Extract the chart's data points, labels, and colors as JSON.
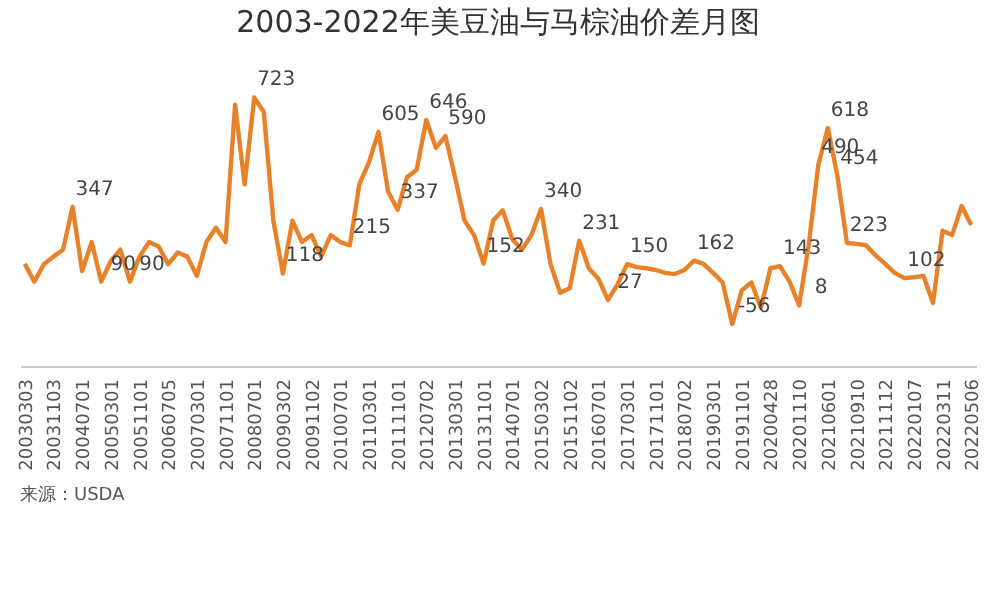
{
  "chart_data": {
    "type": "line",
    "title": "2003-2022年美豆油与马棕油价差月图",
    "annotations": [
      "来源：USDA"
    ],
    "categories": [
      "20030303",
      null,
      null,
      "20031103",
      null,
      null,
      "20040701",
      null,
      null,
      "20050301",
      null,
      null,
      "20051101",
      null,
      null,
      "20060705",
      null,
      null,
      "20070301",
      null,
      null,
      "20071101",
      null,
      null,
      "20080701",
      null,
      null,
      "20090302",
      null,
      null,
      "20091102",
      null,
      null,
      "20100701",
      null,
      null,
      "20110301",
      null,
      null,
      "20111101",
      null,
      null,
      "20120702",
      null,
      null,
      "20130301",
      null,
      null,
      "20131101",
      null,
      null,
      "20140701",
      null,
      null,
      "20150302",
      null,
      null,
      "20151102",
      null,
      null,
      "20160701",
      null,
      null,
      "20170301",
      null,
      null,
      "20171101",
      null,
      null,
      "20180702",
      null,
      null,
      "20190301",
      null,
      null,
      "20191101",
      null,
      null,
      "20200428",
      null,
      null,
      "20201110",
      null,
      null,
      "20210601",
      null,
      null,
      "20210910",
      null,
      null,
      "20211112",
      null,
      null,
      "20220107",
      null,
      null,
      "20220311",
      null,
      null,
      "20220506"
    ],
    "series": [
      {
        "color": "#e8822a",
        "values": [
          151,
          90,
          150,
          176,
          200,
          347,
          126,
          226,
          90,
          161,
          200,
          90,
          176,
          226,
          211,
          150,
          190,
          176,
          110,
          226,
          275,
          226,
          698,
          425,
          723,
          673,
          300,
          118,
          300,
          226,
          250,
          176,
          250,
          226,
          215,
          425,
          500,
          605,
          400,
          337,
          450,
          475,
          646,
          550,
          590,
          450,
          300,
          250,
          152,
          300,
          335,
          236,
          200,
          250,
          340,
          150,
          52,
          67,
          231,
          136,
          100,
          27,
          80,
          150,
          140,
          136,
          130,
          120,
          116,
          130,
          162,
          151,
          120,
          87,
          -56,
          60,
          87,
          0,
          136,
          143,
          90,
          8,
          215,
          490,
          618,
          454,
          223,
          220,
          215,
          180,
          151,
          120,
          102,
          105,
          110,
          17,
          265,
          250,
          350,
          285
        ],
        "value_labels": [
          null,
          null,
          null,
          null,
          null,
          "347",
          null,
          null,
          "90",
          null,
          null,
          "90",
          null,
          null,
          null,
          null,
          null,
          null,
          null,
          null,
          null,
          null,
          null,
          null,
          "723",
          null,
          null,
          "118",
          null,
          null,
          null,
          null,
          null,
          null,
          "215",
          null,
          null,
          "605",
          null,
          "337",
          null,
          null,
          "646",
          null,
          "590",
          null,
          null,
          null,
          "152",
          null,
          null,
          null,
          null,
          null,
          "340",
          null,
          null,
          null,
          "231",
          null,
          null,
          "27",
          null,
          "150",
          null,
          null,
          null,
          null,
          null,
          null,
          "162",
          null,
          null,
          null,
          "-56",
          null,
          null,
          null,
          null,
          "143",
          null,
          "8",
          null,
          "490",
          "618",
          "454",
          "223",
          null,
          null,
          null,
          null,
          null,
          "102",
          null,
          null,
          null,
          null,
          null,
          null,
          null
        ]
      }
    ],
    "tick_labels": "x",
    "grid": false,
    "marker": "none",
    "line_style": "solid"
  }
}
